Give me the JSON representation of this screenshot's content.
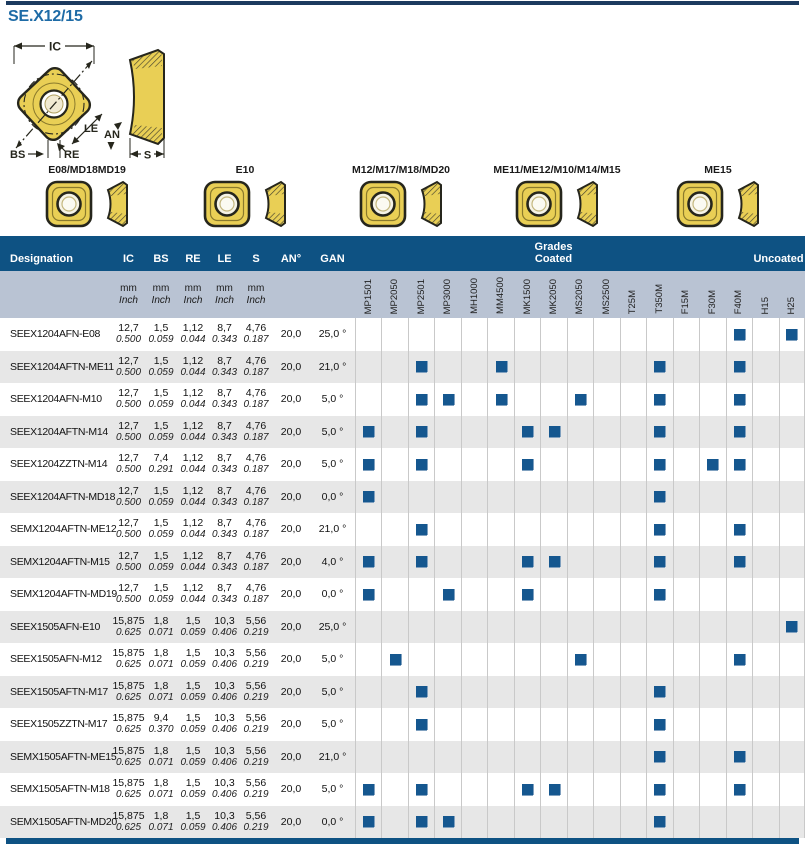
{
  "page": {
    "title": "SE.X12/15"
  },
  "colors": {
    "header_blue": "#0e5283",
    "subheader_blue_gray": "#b9c3d3",
    "mark_blue": "#15578f",
    "title_blue": "#1e6ba6",
    "row_stripe_gray": "#e7e7e7",
    "insert_yellow": "#e9cf55"
  },
  "diagram": {
    "ic": "IC",
    "le": "LE",
    "an": "AN",
    "bs": "BS",
    "re": "RE",
    "s": "S"
  },
  "inserts": [
    {
      "label": "E08/MD18MD19"
    },
    {
      "label": "E10"
    },
    {
      "label": "M12/M17/M18/MD20"
    },
    {
      "label": "ME11/ME12/M10/M14/M15"
    },
    {
      "label": "ME15"
    }
  ],
  "table": {
    "header": {
      "designation": "Designation",
      "dims": [
        "IC",
        "BS",
        "RE",
        "LE",
        "S"
      ],
      "an": "AN°",
      "gan": "GAN",
      "grades_line1": "Grades",
      "grades_line2": "Coated",
      "uncoated": "Uncoated",
      "unit_top": "mm",
      "unit_bottom": "Inch"
    },
    "grades": [
      "MP1501",
      "MP2050",
      "MP2501",
      "MP3000",
      "MH1000",
      "MM4500",
      "MK1500",
      "MK2050",
      "MS2050",
      "MS2500",
      "T25M",
      "T350M",
      "F15M",
      "F30M",
      "F40M",
      "H15",
      "H25"
    ],
    "rows": [
      {
        "designation": "SEEX1204AFN-E08",
        "ic": [
          "12,7",
          "0.500"
        ],
        "bs": [
          "1,5",
          "0.059"
        ],
        "re": [
          "1,12",
          "0.044"
        ],
        "le": [
          "8,7",
          "0.343"
        ],
        "s": [
          "4,76",
          "0.187"
        ],
        "an": "20,0",
        "gan": "25,0 °",
        "marks": [
          "F40M",
          "H25"
        ]
      },
      {
        "designation": "SEEX1204AFTN-ME11",
        "ic": [
          "12,7",
          "0.500"
        ],
        "bs": [
          "1,5",
          "0.059"
        ],
        "re": [
          "1,12",
          "0.044"
        ],
        "le": [
          "8,7",
          "0.343"
        ],
        "s": [
          "4,76",
          "0.187"
        ],
        "an": "20,0",
        "gan": "21,0 °",
        "marks": [
          "MP2501",
          "MM4500",
          "T350M",
          "F40M"
        ]
      },
      {
        "designation": "SEEX1204AFN-M10",
        "ic": [
          "12,7",
          "0.500"
        ],
        "bs": [
          "1,5",
          "0.059"
        ],
        "re": [
          "1,12",
          "0.044"
        ],
        "le": [
          "8,7",
          "0.343"
        ],
        "s": [
          "4,76",
          "0.187"
        ],
        "an": "20,0",
        "gan": "5,0 °",
        "marks": [
          "MP2501",
          "MP3000",
          "MM4500",
          "MS2050",
          "T350M",
          "F40M"
        ]
      },
      {
        "designation": "SEEX1204AFTN-M14",
        "ic": [
          "12,7",
          "0.500"
        ],
        "bs": [
          "1,5",
          "0.059"
        ],
        "re": [
          "1,12",
          "0.044"
        ],
        "le": [
          "8,7",
          "0.343"
        ],
        "s": [
          "4,76",
          "0.187"
        ],
        "an": "20,0",
        "gan": "5,0 °",
        "marks": [
          "MP1501",
          "MP2501",
          "MK1500",
          "MK2050",
          "T350M",
          "F40M"
        ]
      },
      {
        "designation": "SEEX1204ZZTN-M14",
        "ic": [
          "12,7",
          "0.500"
        ],
        "bs": [
          "7,4",
          "0.291"
        ],
        "re": [
          "1,12",
          "0.044"
        ],
        "le": [
          "8,7",
          "0.343"
        ],
        "s": [
          "4,76",
          "0.187"
        ],
        "an": "20,0",
        "gan": "5,0 °",
        "marks": [
          "MP1501",
          "MP2501",
          "MK1500",
          "T350M",
          "F30M",
          "F40M"
        ]
      },
      {
        "designation": "SEEX1204AFTN-MD18",
        "ic": [
          "12,7",
          "0.500"
        ],
        "bs": [
          "1,5",
          "0.059"
        ],
        "re": [
          "1,12",
          "0.044"
        ],
        "le": [
          "8,7",
          "0.343"
        ],
        "s": [
          "4,76",
          "0.187"
        ],
        "an": "20,0",
        "gan": "0,0 °",
        "marks": [
          "MP1501",
          "T350M"
        ]
      },
      {
        "designation": "SEMX1204AFTN-ME12",
        "ic": [
          "12,7",
          "0.500"
        ],
        "bs": [
          "1,5",
          "0.059"
        ],
        "re": [
          "1,12",
          "0.044"
        ],
        "le": [
          "8,7",
          "0.343"
        ],
        "s": [
          "4,76",
          "0.187"
        ],
        "an": "20,0",
        "gan": "21,0 °",
        "marks": [
          "MP2501",
          "T350M",
          "F40M"
        ]
      },
      {
        "designation": "SEMX1204AFTN-M15",
        "ic": [
          "12,7",
          "0.500"
        ],
        "bs": [
          "1,5",
          "0.059"
        ],
        "re": [
          "1,12",
          "0.044"
        ],
        "le": [
          "8,7",
          "0.343"
        ],
        "s": [
          "4,76",
          "0.187"
        ],
        "an": "20,0",
        "gan": "4,0 °",
        "marks": [
          "MP1501",
          "MP2501",
          "MK1500",
          "MK2050",
          "T350M",
          "F40M"
        ]
      },
      {
        "designation": "SEMX1204AFTN-MD19",
        "ic": [
          "12,7",
          "0.500"
        ],
        "bs": [
          "1,5",
          "0.059"
        ],
        "re": [
          "1,12",
          "0.044"
        ],
        "le": [
          "8,7",
          "0.343"
        ],
        "s": [
          "4,76",
          "0.187"
        ],
        "an": "20,0",
        "gan": "0,0 °",
        "marks": [
          "MP1501",
          "MP3000",
          "MK1500",
          "T350M"
        ]
      },
      {
        "designation": "SEEX1505AFN-E10",
        "ic": [
          "15,875",
          "0.625"
        ],
        "bs": [
          "1,8",
          "0.071"
        ],
        "re": [
          "1,5",
          "0.059"
        ],
        "le": [
          "10,3",
          "0.406"
        ],
        "s": [
          "5,56",
          "0.219"
        ],
        "an": "20,0",
        "gan": "25,0 °",
        "marks": [
          "H25"
        ]
      },
      {
        "designation": "SEEX1505AFN-M12",
        "ic": [
          "15,875",
          "0.625"
        ],
        "bs": [
          "1,8",
          "0.071"
        ],
        "re": [
          "1,5",
          "0.059"
        ],
        "le": [
          "10,3",
          "0.406"
        ],
        "s": [
          "5,56",
          "0.219"
        ],
        "an": "20,0",
        "gan": "5,0 °",
        "marks": [
          "MP2050",
          "MS2050",
          "F40M"
        ]
      },
      {
        "designation": "SEEX1505AFTN-M17",
        "ic": [
          "15,875",
          "0.625"
        ],
        "bs": [
          "1,8",
          "0.071"
        ],
        "re": [
          "1,5",
          "0.059"
        ],
        "le": [
          "10,3",
          "0.406"
        ],
        "s": [
          "5,56",
          "0.219"
        ],
        "an": "20,0",
        "gan": "5,0 °",
        "marks": [
          "MP2501",
          "T350M"
        ]
      },
      {
        "designation": "SEEX1505ZZTN-M17",
        "ic": [
          "15,875",
          "0.625"
        ],
        "bs": [
          "9,4",
          "0.370"
        ],
        "re": [
          "1,5",
          "0.059"
        ],
        "le": [
          "10,3",
          "0.406"
        ],
        "s": [
          "5,56",
          "0.219"
        ],
        "an": "20,0",
        "gan": "5,0 °",
        "marks": [
          "MP2501",
          "T350M"
        ]
      },
      {
        "designation": "SEMX1505AFTN-ME15",
        "ic": [
          "15,875",
          "0.625"
        ],
        "bs": [
          "1,8",
          "0.071"
        ],
        "re": [
          "1,5",
          "0.059"
        ],
        "le": [
          "10,3",
          "0.406"
        ],
        "s": [
          "5,56",
          "0.219"
        ],
        "an": "20,0",
        "gan": "21,0 °",
        "marks": [
          "T350M",
          "F40M"
        ]
      },
      {
        "designation": "SEMX1505AFTN-M18",
        "ic": [
          "15,875",
          "0.625"
        ],
        "bs": [
          "1,8",
          "0.071"
        ],
        "re": [
          "1,5",
          "0.059"
        ],
        "le": [
          "10,3",
          "0.406"
        ],
        "s": [
          "5,56",
          "0.219"
        ],
        "an": "20,0",
        "gan": "5,0 °",
        "marks": [
          "MP1501",
          "MP2501",
          "MK1500",
          "MK2050",
          "T350M",
          "F40M"
        ]
      },
      {
        "designation": "SEMX1505AFTN-MD20",
        "ic": [
          "15,875",
          "0.625"
        ],
        "bs": [
          "1,8",
          "0.071"
        ],
        "re": [
          "1,5",
          "0.059"
        ],
        "le": [
          "10,3",
          "0.406"
        ],
        "s": [
          "5,56",
          "0.219"
        ],
        "an": "20,0",
        "gan": "0,0 °",
        "marks": [
          "MP1501",
          "MP2501",
          "MP3000",
          "T350M"
        ]
      }
    ]
  }
}
